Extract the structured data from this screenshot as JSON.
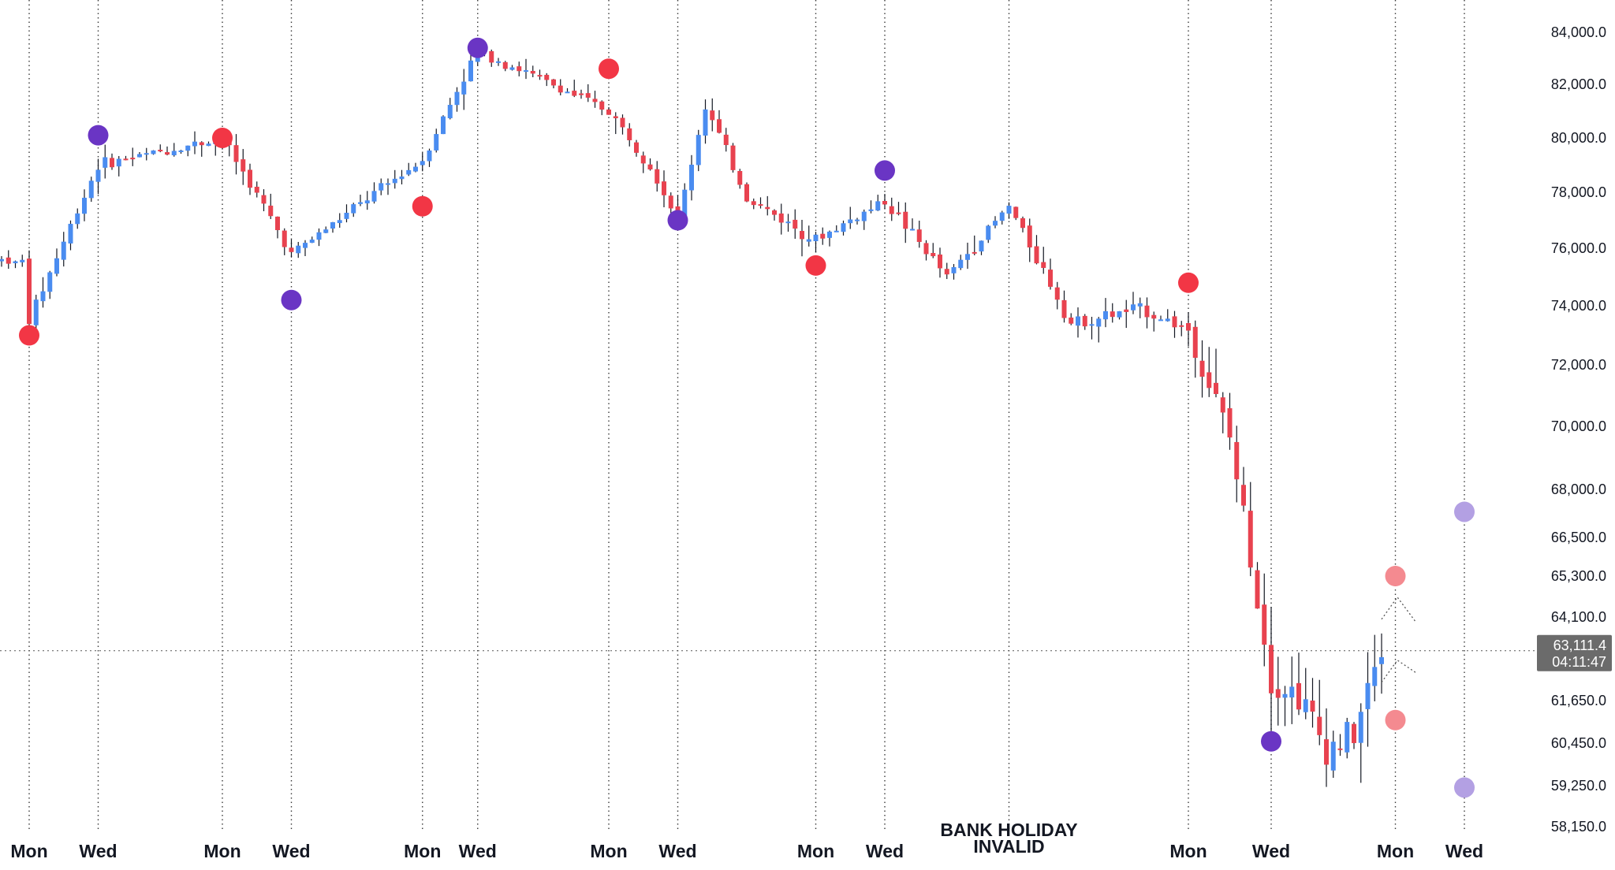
{
  "chart_data": {
    "type": "candlestick",
    "ylim": [
      57800,
      85500
    ],
    "y_ticks": [
      {
        "value": 84000,
        "label": "84,000.0"
      },
      {
        "value": 82000,
        "label": "82,000.0"
      },
      {
        "value": 80000,
        "label": "80,000.0"
      },
      {
        "value": 78000,
        "label": "78,000.0"
      },
      {
        "value": 76000,
        "label": "76,000.0"
      },
      {
        "value": 74000,
        "label": "74,000.0"
      },
      {
        "value": 72000,
        "label": "72,000.0"
      },
      {
        "value": 70000,
        "label": "70,000.0"
      },
      {
        "value": 68000,
        "label": "68,000.0"
      },
      {
        "value": 66500,
        "label": "66,500.0"
      },
      {
        "value": 65300,
        "label": "65,300.0"
      },
      {
        "value": 64100,
        "label": "64,100.0"
      },
      {
        "value": 61650,
        "label": "61,650.0"
      },
      {
        "value": 60450,
        "label": "60,450.0"
      },
      {
        "value": 59250,
        "label": "59,250.0"
      },
      {
        "value": 58150,
        "label": "58,150.0"
      }
    ],
    "x_slots": 210,
    "day_markers": [
      {
        "slot": 4,
        "label": "Mon"
      },
      {
        "slot": 14,
        "label": "Wed"
      },
      {
        "slot": 32,
        "label": "Mon"
      },
      {
        "slot": 42,
        "label": "Wed"
      },
      {
        "slot": 61,
        "label": "Mon"
      },
      {
        "slot": 69,
        "label": "Wed"
      },
      {
        "slot": 88,
        "label": "Mon"
      },
      {
        "slot": 98,
        "label": "Wed"
      },
      {
        "slot": 118,
        "label": "Mon"
      },
      {
        "slot": 128,
        "label": "Wed"
      },
      {
        "slot": 146,
        "label": ""
      },
      {
        "slot": 172,
        "label": "Mon"
      },
      {
        "slot": 184,
        "label": "Wed"
      },
      {
        "slot": 202,
        "label": "Mon"
      },
      {
        "slot": 212,
        "label": "Wed"
      }
    ],
    "annotation": {
      "slot": 146,
      "lines": [
        "BANK HOLIDAY",
        "INVALID"
      ]
    },
    "current_price": {
      "value": 63111.4,
      "label": "63,111.4",
      "countdown": "04:11:47"
    },
    "colors": {
      "up": "#4a8cf0",
      "down": "#e8424f",
      "high_marker": "#f23645",
      "low_marker": "#6a35c4",
      "projection_high": "#f48a90",
      "projection_low": "#b3a0e3",
      "price_box": "#6b6b6b",
      "grid": "#3a3a3a"
    },
    "key_points": [
      {
        "slot": 4,
        "price": 73500
      },
      {
        "slot": 14,
        "price": 79000
      },
      {
        "slot": 32,
        "price": 80000
      },
      {
        "slot": 42,
        "price": 75800
      },
      {
        "slot": 61,
        "price": 79200
      },
      {
        "slot": 69,
        "price": 83300
      },
      {
        "slot": 88,
        "price": 81000
      },
      {
        "slot": 94,
        "price": 79000
      },
      {
        "slot": 98,
        "price": 77000
      },
      {
        "slot": 102,
        "price": 81200
      },
      {
        "slot": 108,
        "price": 77800
      },
      {
        "slot": 118,
        "price": 76300
      },
      {
        "slot": 128,
        "price": 77700
      },
      {
        "slot": 137,
        "price": 75000
      },
      {
        "slot": 146,
        "price": 77500
      },
      {
        "slot": 155,
        "price": 73400
      },
      {
        "slot": 165,
        "price": 73900
      },
      {
        "slot": 172,
        "price": 73200
      },
      {
        "slot": 178,
        "price": 69600
      },
      {
        "slot": 184,
        "price": 62300
      },
      {
        "slot": 188,
        "price": 61800
      },
      {
        "slot": 192,
        "price": 60300
      },
      {
        "slot": 196,
        "price": 60700
      },
      {
        "slot": 200,
        "price": 63111.4
      }
    ],
    "swing_markers": [
      {
        "slot": 4,
        "price": 73000,
        "kind": "high"
      },
      {
        "slot": 14,
        "price": 80100,
        "kind": "low"
      },
      {
        "slot": 32,
        "price": 80000,
        "kind": "high"
      },
      {
        "slot": 42,
        "price": 74200,
        "kind": "low"
      },
      {
        "slot": 61,
        "price": 77500,
        "kind": "high"
      },
      {
        "slot": 69,
        "price": 83400,
        "kind": "low"
      },
      {
        "slot": 88,
        "price": 82600,
        "kind": "high"
      },
      {
        "slot": 98,
        "price": 77000,
        "kind": "low"
      },
      {
        "slot": 118,
        "price": 75400,
        "kind": "high"
      },
      {
        "slot": 128,
        "price": 78800,
        "kind": "low"
      },
      {
        "slot": 172,
        "price": 74800,
        "kind": "high"
      },
      {
        "slot": 184,
        "price": 60500,
        "kind": "low"
      }
    ],
    "projection_markers": [
      {
        "slot": 202,
        "price": 65300,
        "kind": "high"
      },
      {
        "slot": 202,
        "price": 61100,
        "kind": "high"
      },
      {
        "slot": 212,
        "price": 67300,
        "kind": "low"
      },
      {
        "slot": 212,
        "price": 59200,
        "kind": "low"
      }
    ]
  }
}
